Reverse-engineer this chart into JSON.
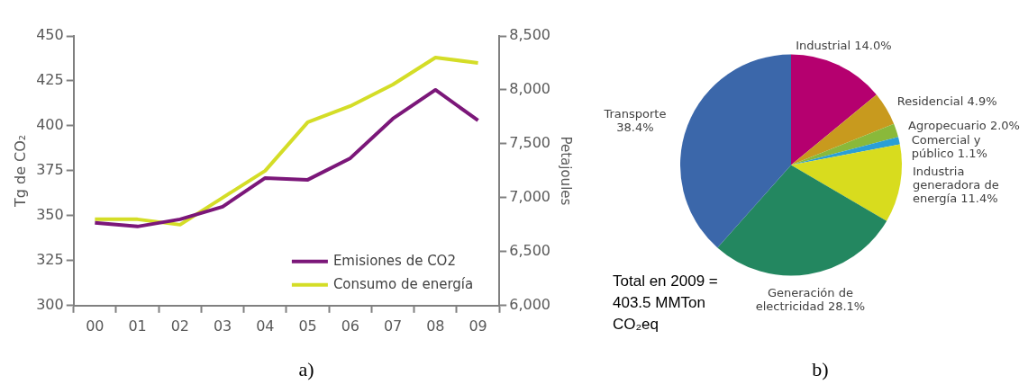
{
  "chart_data": [
    {
      "type": "line",
      "categories": [
        "00",
        "01",
        "02",
        "03",
        "04",
        "05",
        "06",
        "07",
        "08",
        "09"
      ],
      "series": [
        {
          "name": "Emisiones de CO2",
          "color": "#7b1779",
          "values": [
            346,
            344,
            348,
            355,
            371,
            370,
            382,
            404,
            420,
            403
          ]
        },
        {
          "name": "Consumo de energía",
          "color": "#d4dd27",
          "axis": "y2",
          "values": [
            6800,
            6800,
            6750,
            7000,
            7250,
            7700,
            7850,
            8050,
            8300,
            8250
          ]
        }
      ],
      "ylabel": "Tg de CO₂",
      "y2label": "Petajoules",
      "ylim": [
        300,
        450
      ],
      "yticks": [
        300,
        325,
        350,
        375,
        400,
        425,
        450
      ],
      "y2lim": [
        6000,
        8500
      ],
      "y2ticks": [
        {
          "value": 6000,
          "label": "6,000"
        },
        {
          "value": 6500,
          "label": "6,500"
        },
        {
          "value": 7000,
          "label": "7,000"
        },
        {
          "value": 7500,
          "label": "7,500"
        },
        {
          "value": 8000,
          "label": "8,000"
        },
        {
          "value": 8500,
          "label": "8,500"
        }
      ],
      "grid": false,
      "legend": "bottom right",
      "annotations": [
        "a)"
      ]
    },
    {
      "type": "pie",
      "categories": [
        "Industrial",
        "Residencial",
        "Agropecuario",
        "Comercial y público",
        "Industria generadora de energía",
        "Generación de electricidad",
        "Transporte"
      ],
      "values": [
        14.0,
        4.9,
        2.0,
        1.1,
        11.4,
        28.1,
        38.4
      ],
      "colors": [
        "#b5006f",
        "#c89a1e",
        "#8ab93a",
        "#2a9fd6",
        "#d8dc1e",
        "#238760",
        "#3b67aa"
      ],
      "value_labels": [
        "14.0%",
        "4.9%",
        "2.0%",
        "1.1%",
        "11.4%",
        "28.1%",
        "38.4%"
      ],
      "legend": false,
      "annotations": [
        "Total en 2009 = 403.5 MMTon CO₂eq",
        "b)"
      ]
    }
  ]
}
